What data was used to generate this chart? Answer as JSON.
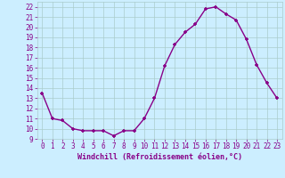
{
  "x": [
    0,
    1,
    2,
    3,
    4,
    5,
    6,
    7,
    8,
    9,
    10,
    11,
    12,
    13,
    14,
    15,
    16,
    17,
    18,
    19,
    20,
    21,
    22,
    23
  ],
  "y": [
    13.5,
    11.0,
    10.8,
    10.0,
    9.8,
    9.8,
    9.8,
    9.3,
    9.8,
    9.8,
    11.0,
    13.0,
    16.2,
    18.3,
    19.5,
    20.3,
    21.8,
    22.0,
    21.3,
    20.7,
    18.8,
    16.3,
    14.5,
    13.0
  ],
  "color": "#880088",
  "bg_color": "#cceeff",
  "grid_color": "#aacccc",
  "xlabel": "Windchill (Refroidissement éolien,°C)",
  "ylim": [
    9,
    22.5
  ],
  "xlim": [
    -0.5,
    23.5
  ],
  "yticks": [
    9,
    10,
    11,
    12,
    13,
    14,
    15,
    16,
    17,
    18,
    19,
    20,
    21,
    22
  ],
  "xticks": [
    0,
    1,
    2,
    3,
    4,
    5,
    6,
    7,
    8,
    9,
    10,
    11,
    12,
    13,
    14,
    15,
    16,
    17,
    18,
    19,
    20,
    21,
    22,
    23
  ],
  "marker": "+",
  "markersize": 3.5,
  "linewidth": 1.0,
  "tick_fontsize": 5.5,
  "xlabel_fontsize": 6.0
}
